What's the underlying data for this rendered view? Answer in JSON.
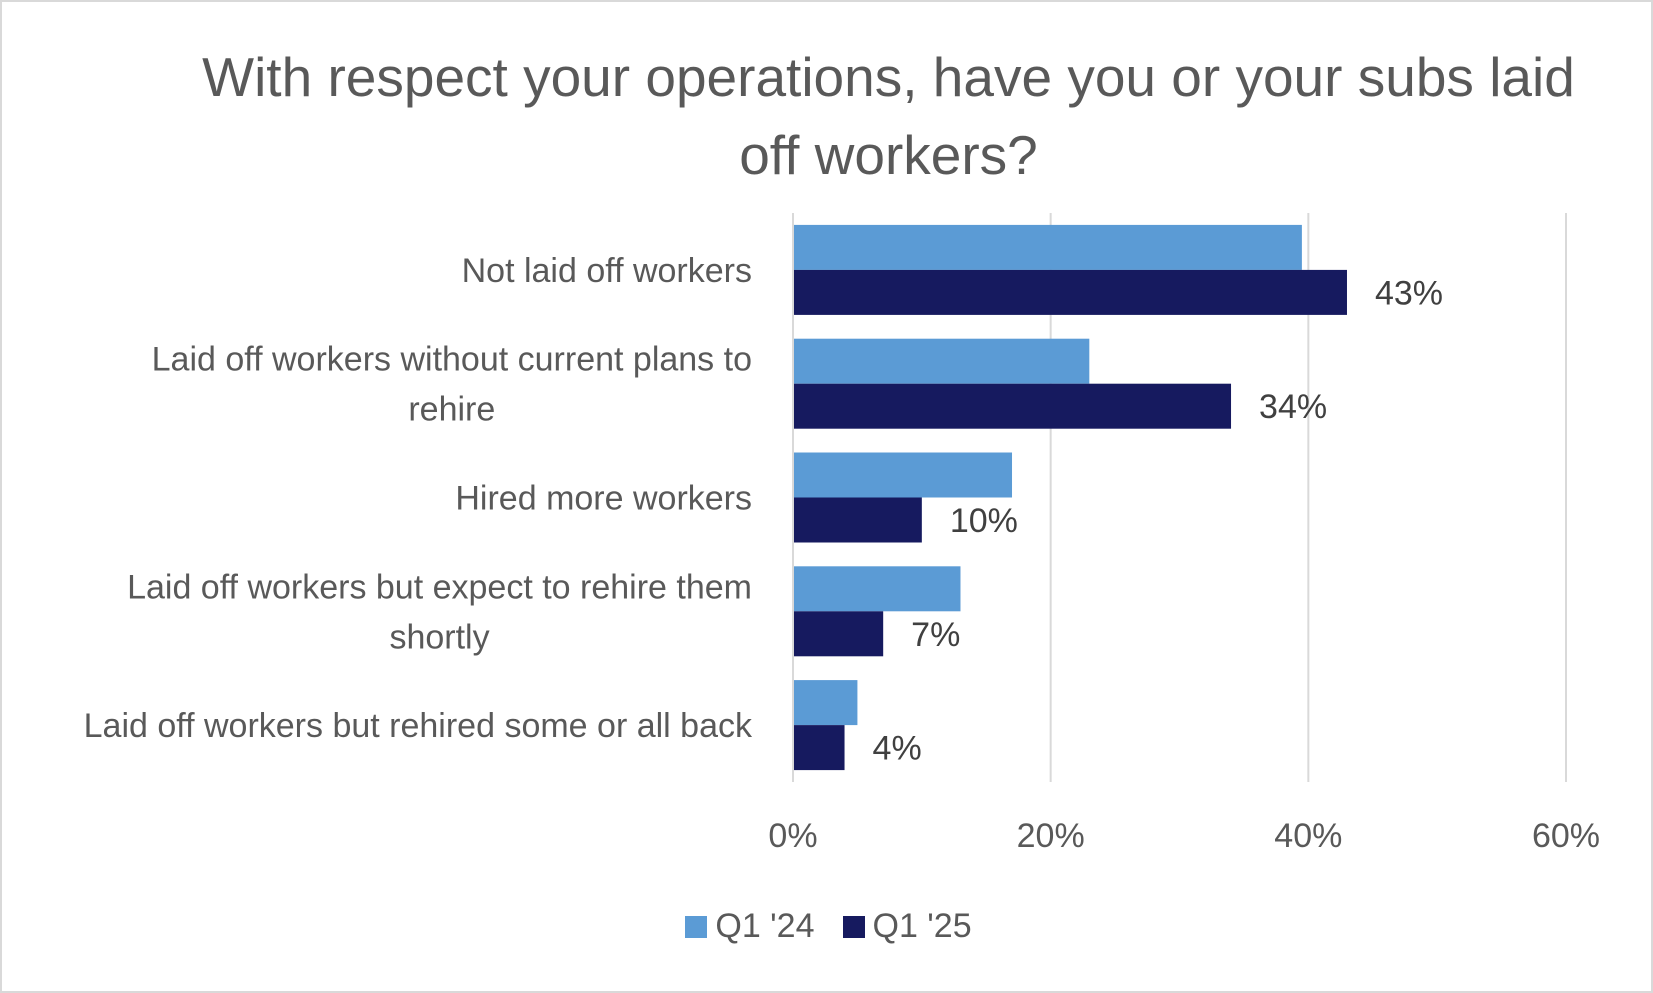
{
  "chart_data": {
    "type": "bar",
    "orientation": "horizontal",
    "title": "With respect your operations, have you or your subs laid off workers?",
    "categories": [
      "Not laid off workers",
      "Laid off workers without current plans to rehire",
      "Hired more workers",
      "Laid off workers but expect to rehire them shortly",
      "Laid off workers but rehired some or all back"
    ],
    "category_lines": [
      [
        "Not laid off workers"
      ],
      [
        "Laid off workers without current plans to",
        "rehire"
      ],
      [
        "Hired more workers"
      ],
      [
        "Laid off workers but expect to rehire them",
        "shortly"
      ],
      [
        "Laid off workers but rehired some or all back"
      ]
    ],
    "series": [
      {
        "name": "Q1 '24",
        "color": "#5B9BD5",
        "values": [
          39.5,
          23,
          17,
          13,
          5
        ],
        "data_labels": null
      },
      {
        "name": "Q1 '25",
        "color": "#161A5F",
        "values": [
          43,
          34,
          10,
          7,
          4
        ],
        "data_labels": [
          "43%",
          "34%",
          "10%",
          "7%",
          "4%"
        ]
      }
    ],
    "xlim": [
      0,
      60
    ],
    "xticks": [
      0,
      20,
      40,
      60
    ],
    "xtick_labels": [
      "0%",
      "20%",
      "40%",
      "60%"
    ],
    "grid": "vertical",
    "legend": "bottom"
  }
}
